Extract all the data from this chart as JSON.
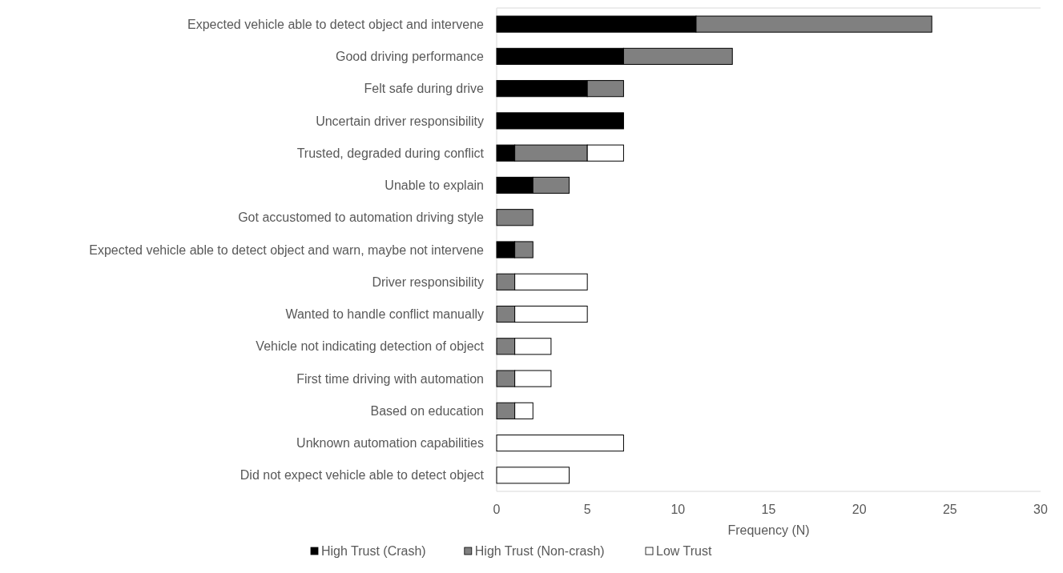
{
  "chart_data": {
    "type": "bar",
    "orientation": "horizontal",
    "stacked": true,
    "xlabel": "Frequency (N)",
    "categories": [
      "Expected vehicle able to detect object and intervene",
      "Good driving performance",
      "Felt safe during drive",
      "Uncertain driver responsibility",
      "Trusted, degraded during conflict",
      "Unable to explain",
      "Got accustomed to automation driving style",
      "Expected vehicle able to detect object and warn, maybe not intervene",
      "Driver responsibility",
      "Wanted to handle conflict manually",
      "Vehicle not indicating detection of object",
      "First time driving with automation",
      "Based on education",
      "Unknown automation capabilities",
      "Did not expect vehicle able to detect object"
    ],
    "series": [
      {
        "name": "High Trust (Crash)",
        "color": "#000000",
        "values": [
          11,
          7,
          5,
          7,
          1,
          2,
          0,
          1,
          0,
          0,
          0,
          0,
          0,
          0,
          0
        ]
      },
      {
        "name": "High Trust (Non-crash)",
        "color": "#808080",
        "values": [
          13,
          6,
          2,
          0,
          4,
          2,
          2,
          1,
          1,
          1,
          1,
          1,
          1,
          0,
          0
        ]
      },
      {
        "name": "Low Trust",
        "color": "#ffffff",
        "values": [
          0,
          0,
          0,
          0,
          2,
          0,
          0,
          0,
          4,
          4,
          2,
          2,
          1,
          7,
          4
        ]
      }
    ],
    "xlim": [
      0,
      30
    ],
    "xticks": [
      0,
      5,
      10,
      15,
      20,
      25,
      30
    ],
    "legend": "bottom"
  }
}
